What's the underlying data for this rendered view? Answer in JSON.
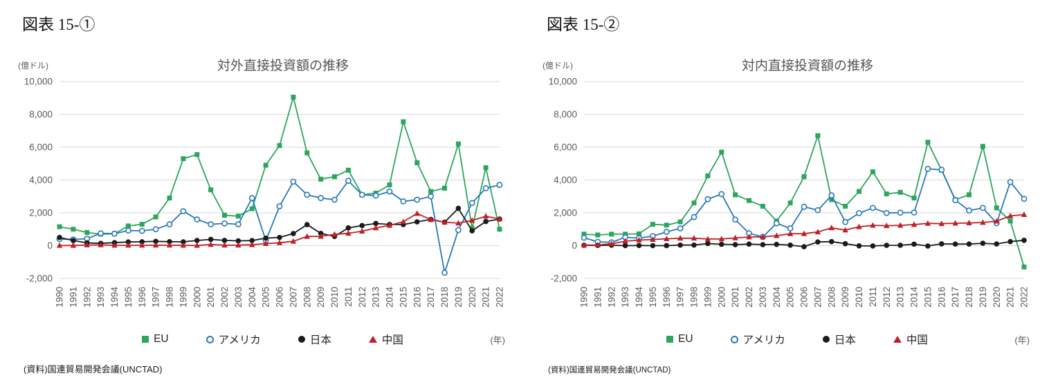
{
  "page": {
    "background": "#ffffff"
  },
  "chart_data": [
    {
      "type": "line",
      "figure_label": "図表 15-①",
      "title": "対外直接投資額の推移",
      "y_unit_label": "(億ドル)",
      "x_unit_label": "(年)",
      "source": "(資料)国連貿易開発会議(UNCTAD)",
      "y_min": -2000,
      "y_max": 10000,
      "y_step": 2000,
      "grid": true,
      "legend_position": "bottom",
      "x": [
        1990,
        1991,
        1992,
        1993,
        1994,
        1995,
        1996,
        1997,
        1998,
        1999,
        2000,
        2001,
        2002,
        2003,
        2004,
        2005,
        2006,
        2007,
        2008,
        2009,
        2010,
        2011,
        2012,
        2013,
        2014,
        2015,
        2016,
        2017,
        2018,
        2019,
        2020,
        2021,
        2022
      ],
      "series": [
        {
          "name": "EU",
          "color": "#2ca55d",
          "marker": "square",
          "values": [
            1150,
            1000,
            800,
            700,
            720,
            1200,
            1300,
            1750,
            2900,
            5300,
            5550,
            3400,
            1850,
            1800,
            2250,
            4900,
            6100,
            9050,
            5650,
            4050,
            4200,
            4600,
            3100,
            3200,
            3700,
            7550,
            5050,
            3300,
            3500,
            6200,
            1050,
            4750,
            1000
          ]
        },
        {
          "name": "アメリカ",
          "color": "#2878b5",
          "marker": "circle-open",
          "values": [
            400,
            380,
            420,
            750,
            730,
            920,
            900,
            1000,
            1300,
            2100,
            1600,
            1300,
            1350,
            1300,
            2900,
            300,
            2400,
            3900,
            3100,
            2900,
            2800,
            3950,
            3100,
            3050,
            3300,
            2700,
            2800,
            3000,
            -1650,
            950,
            2600,
            3500,
            3700
          ]
        },
        {
          "name": "日本",
          "color": "#1a1a1a",
          "marker": "circle",
          "values": [
            500,
            310,
            170,
            140,
            180,
            225,
            235,
            260,
            240,
            230,
            315,
            380,
            320,
            290,
            310,
            455,
            500,
            735,
            1280,
            745,
            560,
            1080,
            1225,
            1350,
            1290,
            1285,
            1450,
            1600,
            1430,
            2270,
            900,
            1470,
            1620
          ]
        },
        {
          "name": "中国",
          "color": "#bf2026",
          "marker": "triangle",
          "values": [
            10,
            10,
            40,
            44,
            20,
            20,
            21,
            26,
            27,
            19,
            9,
            69,
            25,
            29,
            55,
            123,
            176,
            265,
            559,
            565,
            688,
            748,
            878,
            1078,
            1231,
            1456,
            1961,
            1582,
            1430,
            1369,
            1537,
            1788,
            1631
          ]
        }
      ]
    },
    {
      "type": "line",
      "figure_label": "図表 15-②",
      "title": "対内直接投資額の推移",
      "y_unit_label": "(億ドル)",
      "x_unit_label": "(年)",
      "source": "(資料)国連貿易開発会議(UNCTAD)",
      "y_min": -2000,
      "y_max": 10000,
      "y_step": 2000,
      "grid": true,
      "legend_position": "bottom",
      "x": [
        1990,
        1991,
        1992,
        1993,
        1994,
        1995,
        1996,
        1997,
        1998,
        1999,
        2000,
        2001,
        2002,
        2003,
        2004,
        2005,
        2006,
        2007,
        2008,
        2009,
        2010,
        2011,
        2012,
        2013,
        2014,
        2015,
        2016,
        2017,
        2018,
        2019,
        2020,
        2021,
        2022
      ],
      "series": [
        {
          "name": "EU",
          "color": "#2ca55d",
          "marker": "square",
          "values": [
            700,
            650,
            700,
            700,
            720,
            1300,
            1250,
            1450,
            2600,
            4250,
            5700,
            3100,
            2750,
            2400,
            1500,
            2600,
            4200,
            6700,
            2800,
            2400,
            3300,
            4500,
            3150,
            3250,
            2900,
            6300,
            4600,
            2800,
            3100,
            6050,
            2300,
            1500,
            -1300
          ]
        },
        {
          "name": "アメリカ",
          "color": "#2878b5",
          "marker": "circle-open",
          "values": [
            484,
            230,
            198,
            510,
            460,
            580,
            840,
            1050,
            1740,
            2830,
            3140,
            1590,
            750,
            530,
            1360,
            1050,
            2370,
            2160,
            3060,
            1440,
            1980,
            2300,
            1990,
            2010,
            2020,
            4680,
            4620,
            2770,
            2140,
            2300,
            1370,
            3880,
            2850
          ]
        },
        {
          "name": "日本",
          "color": "#1a1a1a",
          "marker": "circle",
          "values": [
            18,
            14,
            27,
            2,
            9,
            0,
            2,
            32,
            32,
            127,
            83,
            62,
            92,
            63,
            78,
            28,
            -65,
            225,
            243,
            119,
            -12,
            -18,
            17,
            23,
            90,
            -23,
            110,
            95,
            98,
            145,
            102,
            247,
            325
          ]
        },
        {
          "name": "中国",
          "color": "#bf2026",
          "marker": "triangle",
          "values": [
            35,
            44,
            110,
            275,
            338,
            375,
            417,
            452,
            455,
            403,
            407,
            469,
            527,
            535,
            606,
            724,
            727,
            835,
            1083,
            950,
            1147,
            1240,
            1211,
            1239,
            1285,
            1356,
            1337,
            1363,
            1383,
            1412,
            1493,
            1810,
            1891
          ]
        }
      ]
    }
  ]
}
